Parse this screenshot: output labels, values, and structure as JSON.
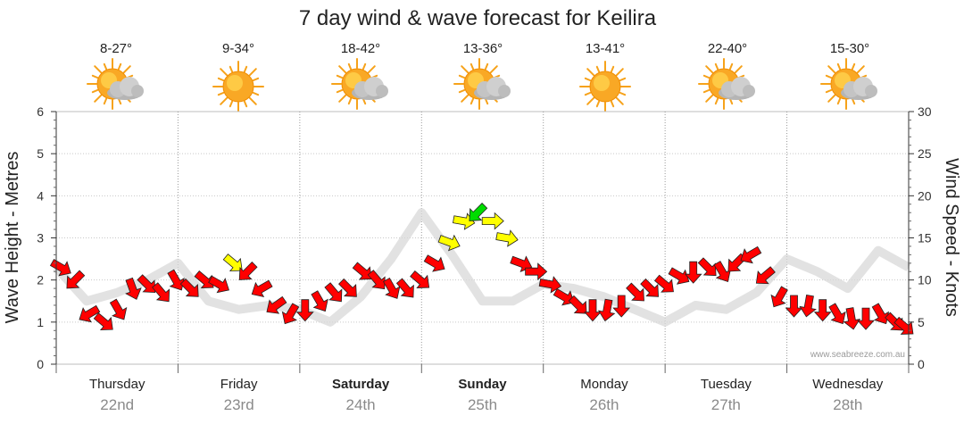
{
  "chart_data": {
    "type": "line",
    "title": "7 day wind & wave forecast for Keilira",
    "ylabel_left": "Wave Height - Metres",
    "ylabel_right": "Wind Speed - Knots",
    "ylim_left": [
      0,
      6
    ],
    "ylim_right": [
      0,
      30
    ],
    "yticks_left": [
      "0",
      "1",
      "2",
      "3",
      "4",
      "5",
      "6"
    ],
    "yticks_right": [
      "0",
      "5",
      "10",
      "15",
      "20",
      "25",
      "30"
    ],
    "grid": true,
    "watermark": "www.seabreeze.com.au",
    "days": [
      {
        "day": "Thursday",
        "date": "22nd",
        "temp": "8-27°",
        "icon": "partly-cloudy-icon",
        "bold": false
      },
      {
        "day": "Friday",
        "date": "23rd",
        "temp": "9-34°",
        "icon": "sunny-icon",
        "bold": false
      },
      {
        "day": "Saturday",
        "date": "24th",
        "temp": "18-42°",
        "icon": "partly-cloudy-icon",
        "bold": true
      },
      {
        "day": "Sunday",
        "date": "25th",
        "temp": "13-36°",
        "icon": "partly-cloudy-icon",
        "bold": true
      },
      {
        "day": "Monday",
        "date": "26th",
        "temp": "13-41°",
        "icon": "sunny-icon",
        "bold": false
      },
      {
        "day": "Tuesday",
        "date": "27th",
        "temp": "22-40°",
        "icon": "partly-cloudy-icon",
        "bold": false
      },
      {
        "day": "Wednesday",
        "date": "28th",
        "temp": "15-30°",
        "icon": "partly-cloudy-icon",
        "bold": false
      }
    ],
    "colors": {
      "red": "#ff0000",
      "yellow": "#ffff00",
      "green": "#00dd00",
      "outline": "#222222"
    },
    "wind_series": {
      "name": "Wind Speed",
      "x_days": [
        0.0,
        0.15,
        0.3,
        0.45,
        0.6,
        0.75,
        0.9,
        1.05,
        1.2,
        1.35,
        1.5,
        1.65,
        1.8,
        1.95,
        2.1,
        2.25,
        2.4,
        2.55,
        2.7,
        2.85,
        3.0,
        3.15,
        3.3,
        3.45,
        3.6,
        3.75,
        3.9,
        4.05,
        4.2,
        4.35,
        4.5,
        4.65,
        4.8,
        4.95,
        5.1,
        5.25,
        5.4,
        5.55,
        5.7,
        5.85,
        6.0,
        6.15,
        6.3,
        6.45,
        6.6,
        6.75,
        6.9,
        7.05,
        7.2,
        7.35,
        7.5,
        7.65,
        7.8,
        7.95,
        8.1,
        8.25,
        8.4,
        8.55,
        8.7,
        8.8
      ],
      "knots": [
        11.5,
        10,
        6,
        5,
        6.5,
        9,
        9.5,
        8.5,
        10,
        9,
        10,
        9.5,
        12,
        11,
        9,
        7,
        6,
        6.5,
        7.5,
        8.5,
        9,
        11,
        10,
        9,
        9,
        10,
        12,
        14.5,
        17,
        18,
        17,
        15,
        12,
        11,
        9.5,
        8,
        7,
        6.5,
        6.5,
        7,
        8.5,
        9,
        9.5,
        10.5,
        11,
        11.5,
        11,
        12,
        13,
        10.5,
        8,
        7,
        7,
        6.5,
        6,
        5.5,
        5.5,
        6,
        5,
        4.5
      ],
      "direction_deg": [
        30,
        135,
        150,
        40,
        60,
        70,
        45,
        50,
        60,
        45,
        40,
        30,
        40,
        135,
        150,
        145,
        120,
        90,
        60,
        50,
        45,
        40,
        50,
        60,
        50,
        40,
        30,
        20,
        10,
        135,
        0,
        10,
        20,
        0,
        10,
        30,
        45,
        90,
        100,
        90,
        45,
        45,
        40,
        30,
        90,
        45,
        60,
        135,
        150,
        140,
        120,
        90,
        100,
        90,
        60,
        80,
        90,
        60,
        45,
        40
      ],
      "color_class": [
        "red",
        "red",
        "red",
        "red",
        "red",
        "red",
        "red",
        "red",
        "red",
        "red",
        "red",
        "red",
        "yellow",
        "red",
        "red",
        "red",
        "red",
        "red",
        "red",
        "red",
        "red",
        "red",
        "red",
        "red",
        "red",
        "red",
        "red",
        "yellow",
        "yellow",
        "green",
        "yellow",
        "yellow",
        "red",
        "red",
        "red",
        "red",
        "red",
        "red",
        "red",
        "red",
        "red",
        "red",
        "red",
        "red",
        "red",
        "red",
        "red",
        "red",
        "red",
        "red",
        "red",
        "red",
        "red",
        "red",
        "red",
        "red",
        "red",
        "red",
        "red",
        "red"
      ]
    },
    "wave_series": {
      "name": "Wave Height",
      "x_days": [
        0.0,
        0.5,
        1.0,
        1.5,
        2.0,
        2.5,
        3.0,
        3.5,
        4.0,
        4.5,
        5.0,
        5.5,
        6.0,
        6.5,
        7.0,
        7.5,
        8.0,
        8.5,
        9.0,
        9.5,
        10.0,
        10.5,
        11.0,
        11.5,
        12.0,
        12.5,
        13.0,
        13.5,
        14.0
      ],
      "metres": [
        2.3,
        1.5,
        1.7,
        2.0,
        2.4,
        1.5,
        1.3,
        1.4,
        1.3,
        1.0,
        1.6,
        2.5,
        3.6,
        2.6,
        1.5,
        1.5,
        1.9,
        1.8,
        1.6,
        1.3,
        1.0,
        1.4,
        1.3,
        1.7,
        2.5,
        2.2,
        1.8,
        2.7,
        2.3
      ]
    }
  }
}
